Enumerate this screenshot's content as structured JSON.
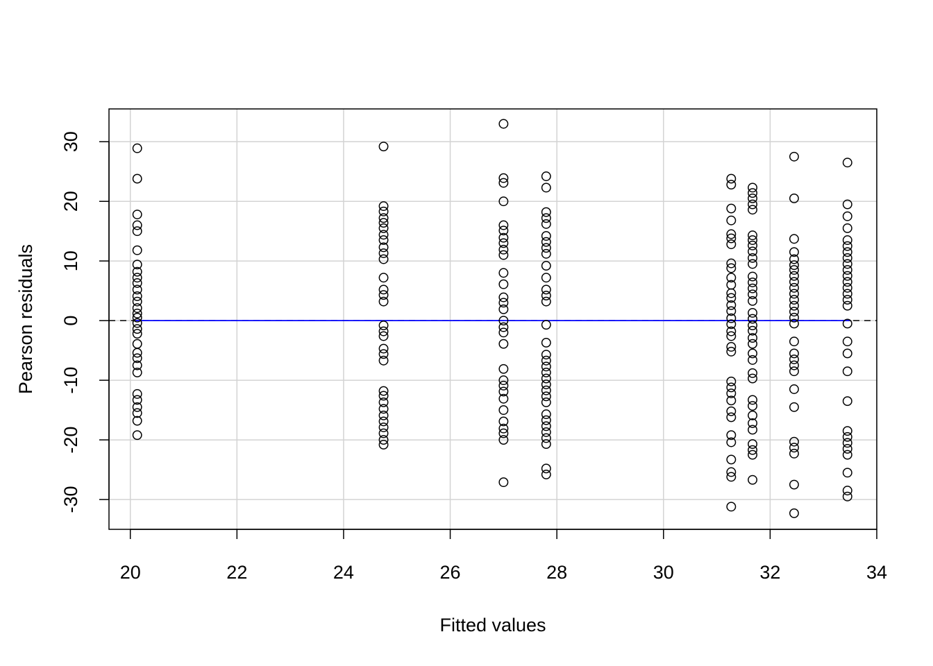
{
  "chart_data": {
    "type": "scatter",
    "title": "",
    "xlabel": "Fitted values",
    "ylabel": "Pearson residuals",
    "xlim": [
      19.6,
      34
    ],
    "ylim": [
      -35,
      35.5
    ],
    "xticks": [
      20,
      22,
      24,
      26,
      28,
      30,
      32,
      34
    ],
    "yticks": [
      -30,
      -20,
      -10,
      0,
      10,
      20,
      30
    ],
    "grid": true,
    "colors": {
      "points": "#000000",
      "fit_line": "#0000ff",
      "reference_line": "#000000",
      "grid": "#d3d3d3"
    },
    "fit_line": {
      "y": 0,
      "x": [
        20.1,
        33.5
      ]
    },
    "reference_line": {
      "y": 0,
      "style": "dashed"
    },
    "groups": [
      {
        "x": 20.13,
        "y": [
          28.9,
          23.8,
          17.8,
          16.0,
          15.0,
          11.8,
          9.4,
          8.2,
          7.2,
          6.3,
          5.2,
          4.1,
          3.2,
          2.1,
          1.2,
          0.5,
          -0.4,
          -1.4,
          -2.2,
          -3.9,
          -5.4,
          -6.3,
          -7.5,
          -8.7,
          -12.3,
          -13.3,
          -14.5,
          -15.5,
          -16.8,
          -19.2
        ]
      },
      {
        "x": 24.75,
        "y": [
          29.2,
          19.2,
          18.3,
          17.2,
          16.4,
          15.5,
          14.4,
          13.5,
          12.3,
          11.3,
          10.3,
          7.2,
          5.2,
          4.3,
          3.2,
          -0.8,
          -1.8,
          -2.6,
          -4.7,
          -5.6,
          -6.7,
          -11.8,
          -12.6,
          -13.7,
          -14.8,
          -15.9,
          -16.9,
          -17.9,
          -18.9,
          -20.0,
          -20.8
        ]
      },
      {
        "x": 27.0,
        "y": [
          33.0,
          23.9,
          23.1,
          20.0,
          16.0,
          15.1,
          13.9,
          13.0,
          11.9,
          11.0,
          8.0,
          6.1,
          3.9,
          3.0,
          1.9,
          0.0,
          -1.1,
          -2.0,
          -3.9,
          -8.1,
          -10.0,
          -10.9,
          -11.9,
          -13.1,
          -15.0,
          -16.9,
          -18.1,
          -18.9,
          -20.0,
          -27.1
        ]
      },
      {
        "x": 27.8,
        "y": [
          24.2,
          22.3,
          18.2,
          17.2,
          16.2,
          14.2,
          13.2,
          12.2,
          11.2,
          9.2,
          7.2,
          5.2,
          4.2,
          3.2,
          -0.7,
          -3.7,
          -5.7,
          -6.7,
          -7.7,
          -8.7,
          -9.7,
          -10.7,
          -11.7,
          -12.7,
          -13.7,
          -15.7,
          -16.7,
          -17.7,
          -18.7,
          -19.7,
          -20.7,
          -24.8,
          -25.8
        ]
      },
      {
        "x": 31.27,
        "y": [
          23.8,
          22.8,
          18.8,
          16.8,
          14.5,
          13.8,
          12.8,
          9.6,
          8.8,
          7.2,
          6.0,
          4.6,
          3.8,
          2.6,
          1.6,
          0.4,
          -0.6,
          -1.8,
          -2.6,
          -4.4,
          -5.2,
          -10.2,
          -11.2,
          -12.2,
          -13.4,
          -15.2,
          -16.2,
          -19.2,
          -20.4,
          -23.3,
          -25.4,
          -26.2,
          -31.2
        ]
      },
      {
        "x": 31.67,
        "y": [
          22.3,
          21.4,
          20.5,
          19.5,
          18.6,
          14.3,
          13.5,
          12.6,
          11.6,
          10.5,
          9.5,
          7.4,
          6.4,
          5.4,
          4.4,
          3.3,
          1.3,
          0.3,
          -0.8,
          -1.7,
          -2.9,
          -3.9,
          -5.5,
          -6.6,
          -8.8,
          -9.7,
          -13.3,
          -14.3,
          -15.9,
          -17.2,
          -18.3,
          -20.7,
          -21.7,
          -22.5,
          -26.7
        ]
      },
      {
        "x": 32.45,
        "y": [
          27.5,
          20.5,
          13.7,
          11.5,
          10.3,
          9.3,
          8.5,
          7.5,
          6.5,
          5.5,
          4.5,
          3.5,
          2.5,
          1.5,
          0.5,
          -0.5,
          -3.5,
          -5.5,
          -6.5,
          -7.5,
          -8.5,
          -11.5,
          -14.5,
          -20.3,
          -21.3,
          -22.3,
          -27.5,
          -32.3
        ]
      },
      {
        "x": 33.45,
        "y": [
          26.5,
          19.5,
          17.5,
          15.5,
          13.5,
          12.5,
          11.5,
          10.5,
          9.5,
          8.5,
          7.5,
          6.5,
          5.5,
          4.5,
          3.5,
          2.5,
          -0.5,
          -3.5,
          -5.5,
          -8.5,
          -13.5,
          -18.5,
          -19.5,
          -20.5,
          -21.5,
          -22.5,
          -25.5,
          -28.5,
          -29.5
        ]
      }
    ]
  }
}
